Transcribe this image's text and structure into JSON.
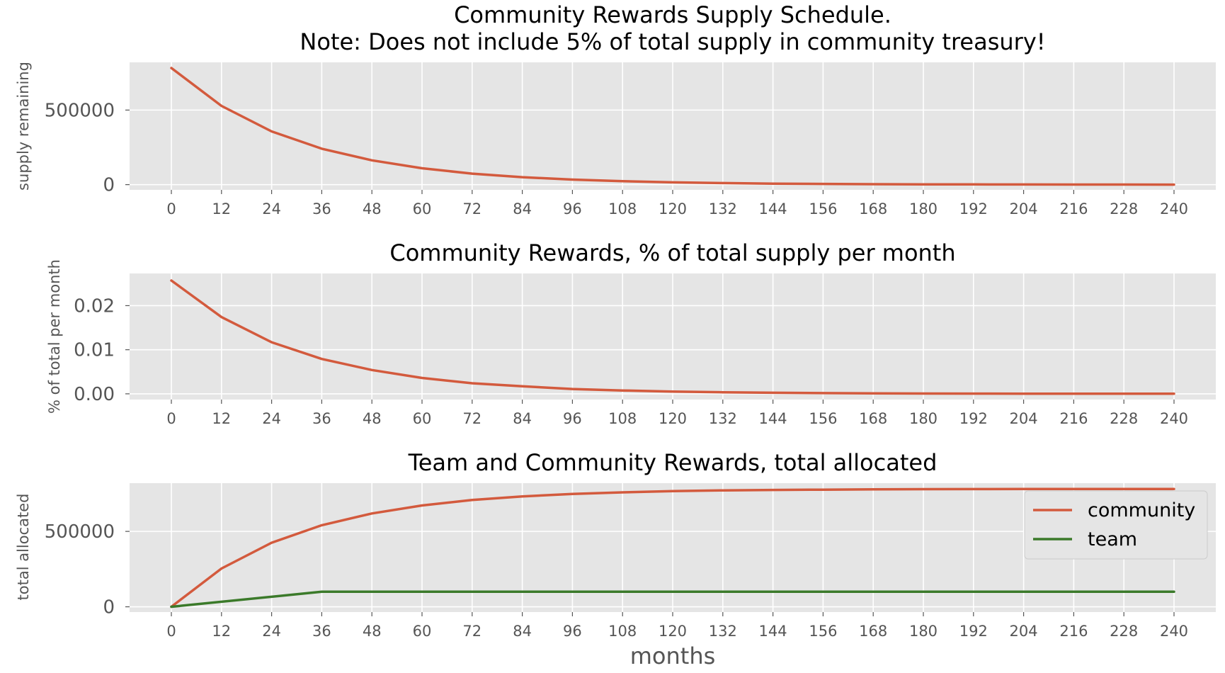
{
  "chart_data": [
    {
      "type": "line",
      "title": "Community Rewards Supply Schedule.",
      "subtitle": "Note: Does not include 5% of total supply in community treasury!",
      "xlabel": "",
      "ylabel": "supply remaining",
      "xlim": [
        -10,
        250
      ],
      "ylim": [
        -35000,
        820000
      ],
      "xticks": [
        0,
        12,
        24,
        36,
        48,
        60,
        72,
        84,
        96,
        108,
        120,
        132,
        144,
        156,
        168,
        180,
        192,
        204,
        216,
        228,
        240
      ],
      "yticks": [
        0,
        500000
      ],
      "ytick_labels": [
        "0",
        "500000"
      ],
      "grid": true,
      "series": [
        {
          "color": "#e24a33",
          "x": [
            0,
            12,
            24,
            36,
            48,
            60,
            72,
            84,
            96,
            108,
            120,
            132,
            144,
            156,
            168,
            180,
            192,
            204,
            216,
            228,
            240
          ],
          "y": [
            782000,
            528000,
            357000,
            241000,
            163000,
            110000,
            74000,
            50000,
            34000,
            23000,
            15500,
            10500,
            7000,
            4800,
            3200,
            2200,
            1500,
            1000,
            700,
            450,
            300
          ]
        }
      ]
    },
    {
      "type": "line",
      "title": "Community Rewards, % of total supply per month",
      "xlabel": "",
      "ylabel": "% of total per month",
      "xlim": [
        -10,
        250
      ],
      "ylim": [
        -0.0013,
        0.0273
      ],
      "xticks": [
        0,
        12,
        24,
        36,
        48,
        60,
        72,
        84,
        96,
        108,
        120,
        132,
        144,
        156,
        168,
        180,
        192,
        204,
        216,
        228,
        240
      ],
      "yticks": [
        0,
        0.01,
        0.02
      ],
      "ytick_labels": [
        "0.00",
        "0.01",
        "0.02"
      ],
      "grid": true,
      "series": [
        {
          "color": "#e24a33",
          "x": [
            0,
            12,
            24,
            36,
            48,
            60,
            72,
            84,
            96,
            108,
            120,
            132,
            144,
            156,
            168,
            180,
            192,
            204,
            216,
            228,
            240
          ],
          "y": [
            0.0257,
            0.0174,
            0.0117,
            0.0079,
            0.0054,
            0.0036,
            0.0024,
            0.0017,
            0.0011,
            0.00076,
            0.00051,
            0.00035,
            0.00024,
            0.00016,
            0.00011,
            7e-05,
            5e-05,
            3e-05,
            2e-05,
            1e-05,
            1e-05
          ]
        }
      ]
    },
    {
      "type": "line",
      "title": "Team and Community Rewards, total allocated",
      "xlabel": "months",
      "ylabel": "total allocated",
      "xlim": [
        -10,
        250
      ],
      "ylim": [
        -35000,
        820000
      ],
      "xticks": [
        0,
        12,
        24,
        36,
        48,
        60,
        72,
        84,
        96,
        108,
        120,
        132,
        144,
        156,
        168,
        180,
        192,
        204,
        216,
        228,
        240
      ],
      "yticks": [
        0,
        500000
      ],
      "ytick_labels": [
        "0",
        "500000"
      ],
      "grid": true,
      "legend": "top-right",
      "series": [
        {
          "name": "community",
          "color": "#e24a33",
          "x": [
            0,
            12,
            24,
            36,
            48,
            60,
            72,
            84,
            96,
            108,
            120,
            132,
            144,
            156,
            168,
            180,
            192,
            204,
            216,
            228,
            240
          ],
          "y": [
            0,
            254000,
            425000,
            541000,
            619000,
            672000,
            708000,
            732000,
            748000,
            759000,
            767000,
            772000,
            775000,
            777000,
            779000,
            780000,
            780500,
            781000,
            781300,
            781500,
            781700
          ]
        },
        {
          "name": "team",
          "color": "#348abd",
          "x": [
            0,
            36,
            48,
            60,
            72,
            84,
            96,
            108,
            120,
            132,
            144,
            156,
            168,
            180,
            192,
            204,
            216,
            228,
            240
          ],
          "y": [
            0,
            100000,
            100000,
            100000,
            100000,
            100000,
            100000,
            100000,
            100000,
            100000,
            100000,
            100000,
            100000,
            100000,
            100000,
            100000,
            100000,
            100000,
            100000
          ]
        }
      ]
    }
  ],
  "colors": {
    "plot_background": "#e5e5e5",
    "grid": "#ffffff",
    "community": "#d35a3d",
    "team": "#3b7a2a"
  }
}
